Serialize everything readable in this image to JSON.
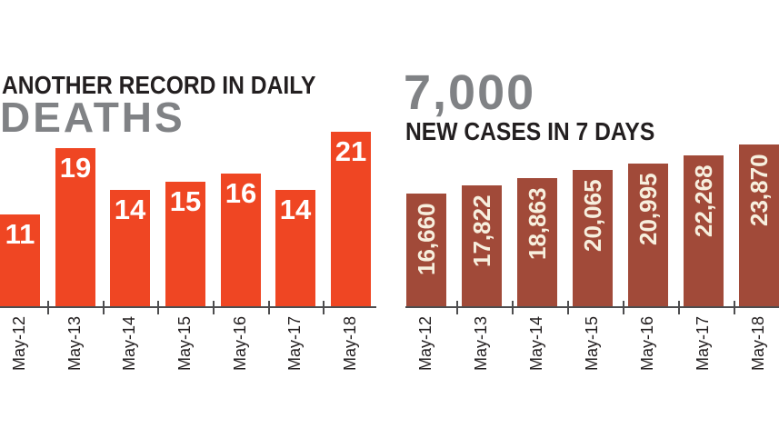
{
  "page": {
    "background": "#ffffff"
  },
  "deaths_chart": {
    "title_line1": "ANOTHER RECORD IN DAILY",
    "title_line2": "DEATHS",
    "title_line1_color": "#231f20",
    "title_line2_color": "#808285"
  },
  "cases_chart": {
    "headline_number": "7,000",
    "subtitle": "NEW CASES IN 7 DAYS",
    "headline_color": "#808285",
    "subtitle_color": "#231f20"
  },
  "axis": {
    "color": "#4d4d4f",
    "tick_label_color": "#231f20"
  },
  "chart_data": [
    {
      "id": "daily-deaths",
      "type": "bar",
      "title": "ANOTHER RECORD IN DAILY DEATHS",
      "categories": [
        "May-12",
        "May-13",
        "May-14",
        "May-15",
        "May-16",
        "May-17",
        "May-18"
      ],
      "values": [
        11,
        19,
        14,
        15,
        16,
        14,
        21
      ],
      "value_labels": [
        "11",
        "19",
        "14",
        "15",
        "16",
        "14",
        "21"
      ],
      "bar_color": "#ef4623",
      "value_label_color": "#ffffff",
      "value_label_style": "horizontal-inside-top",
      "baseline": 0,
      "grid": false,
      "legend": false,
      "x_tick_label_rotation": -90
    },
    {
      "id": "new-cases-7-days",
      "type": "bar",
      "title": "7,000 NEW CASES IN 7 DAYS",
      "categories": [
        "May-12",
        "May-13",
        "May-14",
        "May-15",
        "May-16",
        "May-17",
        "May-18"
      ],
      "values": [
        16660,
        17822,
        18863,
        20065,
        20995,
        22268,
        23870
      ],
      "value_labels": [
        "16,660",
        "17,822",
        "18,863",
        "20,065",
        "20,995",
        "22,268",
        "23,870"
      ],
      "bar_color": "#a14a39",
      "value_label_color": "#f7efde",
      "value_label_style": "vertical-inside-top",
      "baseline": 0,
      "grid": false,
      "legend": false,
      "x_tick_label_rotation": -90
    }
  ]
}
